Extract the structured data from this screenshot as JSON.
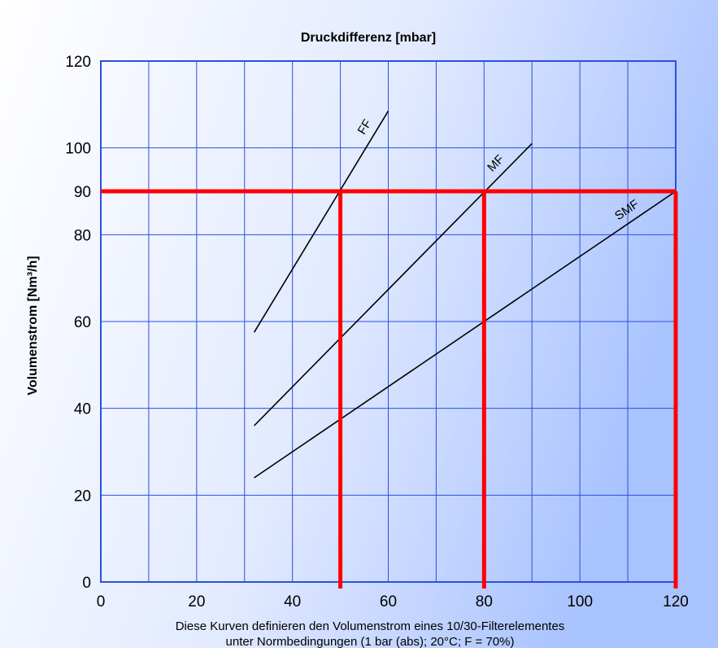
{
  "chart_data": {
    "type": "line",
    "title": "Druckdifferenz [mbar]",
    "ylabel": "Volumenstrom [Nm³/h]",
    "caption_line1": "Diese Kurven definieren den Volumenstrom eines 10/30-Filterelementes",
    "caption_line2": "unter Normbedingungen (1 bar (abs); 20°C; F = 70%)",
    "xlim": [
      0,
      120
    ],
    "ylim": [
      0,
      120
    ],
    "x_ticks": [
      0,
      20,
      40,
      60,
      80,
      100,
      120
    ],
    "y_ticks": [
      0,
      20,
      40,
      60,
      80,
      90,
      100,
      120
    ],
    "grid": true,
    "series": [
      {
        "name": "FF",
        "points": [
          [
            32,
            57.5
          ],
          [
            60,
            108.5
          ]
        ]
      },
      {
        "name": "MF",
        "points": [
          [
            32,
            36
          ],
          [
            90,
            101
          ]
        ]
      },
      {
        "name": "SMF",
        "points": [
          [
            32,
            24
          ],
          [
            120,
            90
          ]
        ]
      }
    ],
    "reference_lines": {
      "horizontal_y": 90,
      "vertical_x": [
        50,
        80,
        120
      ],
      "color": "#ff0000"
    },
    "colors": {
      "grid": "#2b4fe0",
      "series": "#000000",
      "background_light": "#ffffff",
      "background_dark": "#a9c3ff"
    }
  }
}
